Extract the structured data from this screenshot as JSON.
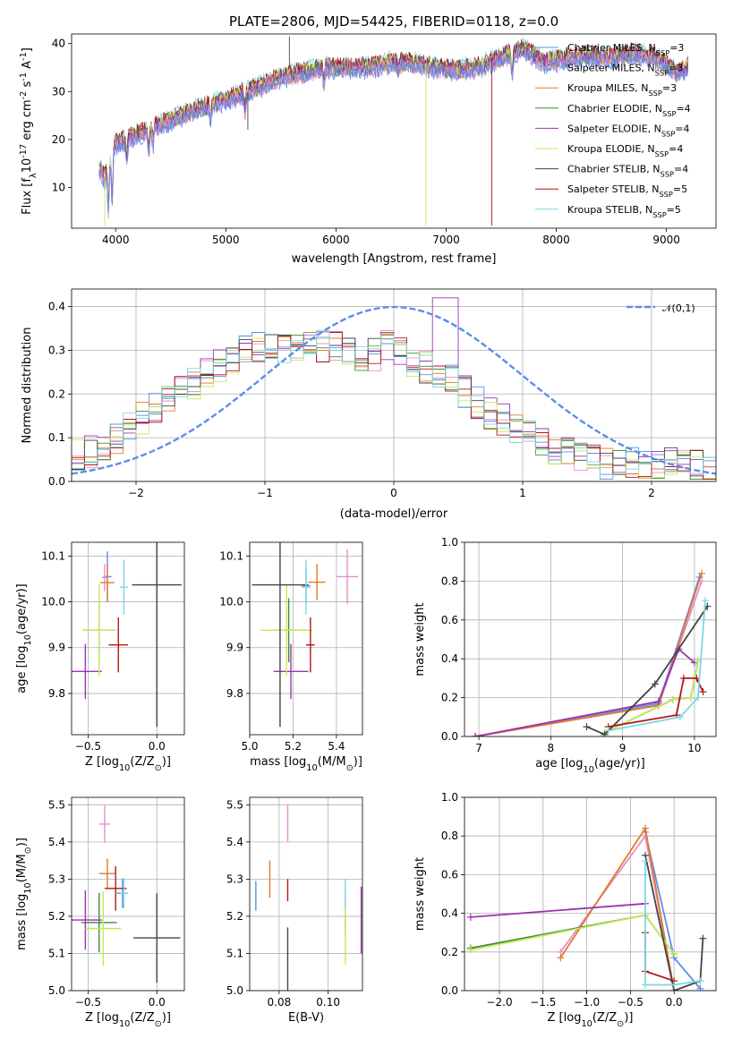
{
  "chart_data": [
    {
      "type": "line",
      "title": "PLATE=2806, MJD=54425, FIBERID=0118, z=0.0",
      "xlabel": "wavelength [Angstrom, rest frame]",
      "ylabel": "Flux [f$_λ$10$^{-17}$ erg cm$^{-2}$ s$^{-1}$ A$^{-1}$]",
      "xlim": [
        3600,
        9450
      ],
      "ylim": [
        1.5,
        42
      ],
      "xticks": [
        4000,
        5000,
        6000,
        7000,
        8000,
        9000
      ],
      "yticks": [
        10,
        20,
        30,
        40
      ],
      "grid": false,
      "legend_position": "top-right",
      "spectrum_envelope": {
        "x": [
          3850,
          3900,
          4000,
          4100,
          4200,
          4300,
          4500,
          4700,
          4900,
          5100,
          5300,
          5500,
          5700,
          5900,
          6100,
          6300,
          6500,
          6700,
          6900,
          7100,
          7300,
          7500,
          7700,
          7900,
          8100,
          8300,
          8500,
          8700,
          8900,
          9100,
          9200
        ],
        "y": [
          14,
          12,
          19,
          20,
          21,
          22,
          24,
          26,
          27.5,
          29,
          31,
          33,
          34,
          35,
          35,
          35,
          36,
          36,
          35,
          34.5,
          35,
          37,
          39,
          36,
          37,
          37.5,
          37,
          38,
          37,
          34,
          35
        ]
      },
      "series": [
        {
          "name": "Chabrier MILES, N$_{SSP}$=3"
        },
        {
          "name": "Salpeter MILES, N$_{SSP}$=3"
        },
        {
          "name": "Kroupa MILES, N$_{SSP}$=3"
        },
        {
          "name": "Chabrier ELODIE, N$_{SSP}$=4"
        },
        {
          "name": "Salpeter ELODIE, N$_{SSP}$=4"
        },
        {
          "name": "Kroupa ELODIE, N$_{SSP}$=4"
        },
        {
          "name": "Chabrier STELIB, N$_{SSP}$=4"
        },
        {
          "name": "Salpeter STELIB, N$_{SSP}$=5"
        },
        {
          "name": "Kroupa STELIB, N$_{SSP}$=5"
        }
      ]
    },
    {
      "type": "line",
      "xlabel": "(data-model)/error",
      "ylabel": "Normed distribution",
      "xlim": [
        -2.5,
        2.5
      ],
      "ylim": [
        0,
        0.44
      ],
      "xticks": [
        -2,
        -1,
        0,
        1,
        2
      ],
      "yticks": [
        0.0,
        0.1,
        0.2,
        0.3,
        0.4
      ],
      "grid": true,
      "legend_position": "top-right",
      "reference_curve": {
        "name": "$\\mathcal{N}(0,1)$",
        "mean": 0,
        "sigma": 1
      },
      "bin_width": 0.1,
      "bin_start": -2.5,
      "histogram_mean_shape": [
        0.06,
        0.06,
        0.065,
        0.07,
        0.075,
        0.08,
        0.09,
        0.1,
        0.11,
        0.13,
        0.14,
        0.15,
        0.16,
        0.17,
        0.18,
        0.19,
        0.2,
        0.21,
        0.22,
        0.23,
        0.24,
        0.25,
        0.26,
        0.27,
        0.28,
        0.29,
        0.3,
        0.3,
        0.31,
        0.31,
        0.3,
        0.32,
        0.31,
        0.3,
        0.32,
        0.31,
        0.33,
        0.33,
        0.32,
        0.3,
        0.31,
        0.3,
        0.3,
        0.29,
        0.3,
        0.28,
        0.28,
        0.3,
        0.32,
        0.31,
        0.3,
        0.29,
        0.28,
        0.27,
        0.26,
        0.26,
        0.25,
        0.25,
        0.24,
        0.22,
        0.21,
        0.2,
        0.19,
        0.17,
        0.16,
        0.15,
        0.14,
        0.14,
        0.12,
        0.11,
        0.11,
        0.1,
        0.09,
        0.09,
        0.08,
        0.07,
        0.07,
        0.06,
        0.06,
        0.05,
        0.05,
        0.05,
        0.04,
        0.04,
        0.04,
        0.05,
        0.04,
        0.05,
        0.04,
        0.04,
        0.04,
        0.03,
        0.05,
        0.04,
        0.03,
        0.04,
        0.03,
        0.04,
        0.03,
        0.03
      ]
    },
    {
      "type": "scatter",
      "xlabel": "Z [log$_{10}$($Z/Z_\\odot$)]",
      "ylabel": "age  [log$_{10}$($age/yr$)]",
      "xlim": [
        -0.62,
        0.2
      ],
      "ylim": [
        9.71,
        10.13
      ],
      "xticks": [
        -0.5,
        0.0
      ],
      "yticks": [
        9.8,
        9.9,
        10.0,
        10.1
      ],
      "grid": true,
      "points": [
        {
          "x": -0.36,
          "xerr": 0.03,
          "y": 10.055,
          "yerr": 0.055
        },
        {
          "x": -0.38,
          "xerr": 0.02,
          "y": 10.053,
          "yerr": 0.03
        },
        {
          "x": -0.36,
          "xerr": 0.05,
          "y": 10.042,
          "yerr": 0.04
        },
        {
          "x": -0.42,
          "xerr": 0.12,
          "y": 9.938,
          "yerr": 0.07
        },
        {
          "x": -0.52,
          "xerr": 0.12,
          "y": 9.848,
          "yerr": 0.06
        },
        {
          "x": -0.42,
          "xerr": 0.12,
          "y": 9.938,
          "yerr": 0.1
        },
        {
          "x": 0.0,
          "xerr": 0.18,
          "y": 10.037,
          "yerr": 0.31
        },
        {
          "x": -0.28,
          "xerr": 0.07,
          "y": 9.906,
          "yerr": 0.06
        },
        {
          "x": -0.24,
          "xerr": 0.03,
          "y": 10.032,
          "yerr": 0.06
        }
      ]
    },
    {
      "type": "scatter",
      "xlabel": "mass [log$_{10}$($M/M_\\odot$)]",
      "ylabel": "",
      "xlim": [
        5.0,
        5.52
      ],
      "ylim": [
        9.71,
        10.13
      ],
      "xticks": [
        5.0,
        5.2,
        5.4
      ],
      "yticks": [
        9.8,
        9.9,
        10.0,
        10.1
      ],
      "grid": true,
      "points": [
        {
          "x": 5.26,
          "xerr": 0.02,
          "y": 10.035,
          "yerr": 0.04
        },
        {
          "x": 5.45,
          "xerr": 0.05,
          "y": 10.055,
          "yerr": 0.06
        },
        {
          "x": 5.31,
          "xerr": 0.04,
          "y": 10.043,
          "yerr": 0.04
        },
        {
          "x": 5.18,
          "xerr": 0.08,
          "y": 9.938,
          "yerr": 0.07
        },
        {
          "x": 5.19,
          "xerr": 0.08,
          "y": 9.848,
          "yerr": 0.06
        },
        {
          "x": 5.17,
          "xerr": 0.12,
          "y": 9.938,
          "yerr": 0.1
        },
        {
          "x": 5.14,
          "xerr": 0.13,
          "y": 10.037,
          "yerr": 0.31
        },
        {
          "x": 5.28,
          "xerr": 0.02,
          "y": 9.906,
          "yerr": 0.06
        },
        {
          "x": 5.26,
          "xerr": 0.02,
          "y": 10.032,
          "yerr": 0.06
        }
      ]
    },
    {
      "type": "line",
      "xlabel": "age  [log$_{10}$($age/yr$)]",
      "ylabel": "mass weight",
      "xlim": [
        6.8,
        10.3
      ],
      "ylim": [
        0,
        1
      ],
      "xticks": [
        7,
        8,
        9,
        10
      ],
      "yticks": [
        0.0,
        0.2,
        0.4,
        0.6,
        0.8,
        1.0
      ],
      "grid": true,
      "series": [
        {
          "x": [
            6.95,
            9.5,
            10.07
          ],
          "y": [
            0.0,
            0.17,
            0.82
          ]
        },
        {
          "x": [
            6.95,
            9.5,
            10.1
          ],
          "y": [
            0.0,
            0.16,
            0.8
          ]
        },
        {
          "x": [
            6.95,
            9.5,
            10.1
          ],
          "y": [
            0.0,
            0.16,
            0.84
          ]
        },
        {
          "x": [
            8.75,
            9.7,
            9.95,
            10.05
          ],
          "y": [
            0.02,
            0.19,
            0.2,
            0.39
          ]
        },
        {
          "x": [
            6.95,
            9.5,
            9.78,
            10.0
          ],
          "y": [
            0.0,
            0.18,
            0.45,
            0.38
          ]
        },
        {
          "x": [
            8.75,
            9.7,
            9.95,
            10.05
          ],
          "y": [
            0.02,
            0.19,
            0.2,
            0.39
          ]
        },
        {
          "x": [
            8.5,
            8.75,
            9.45,
            10.18
          ],
          "y": [
            0.05,
            0.01,
            0.27,
            0.67
          ]
        },
        {
          "x": [
            8.8,
            9.75,
            9.85,
            10.03,
            10.12
          ],
          "y": [
            0.05,
            0.11,
            0.3,
            0.3,
            0.23
          ]
        },
        {
          "x": [
            8.8,
            9.8,
            10.05,
            10.15
          ],
          "y": [
            0.03,
            0.1,
            0.2,
            0.7
          ]
        }
      ]
    },
    {
      "type": "scatter",
      "xlabel": "Z [log$_{10}$($Z/Z_\\odot$)]",
      "ylabel": "mass [log$_{10}$($M/M_\\odot$)]",
      "xlim": [
        -0.62,
        0.2
      ],
      "ylim": [
        5.0,
        5.52
      ],
      "xticks": [
        -0.5,
        0.0
      ],
      "yticks": [
        5.0,
        5.1,
        5.2,
        5.3,
        5.4,
        5.5
      ],
      "grid": true,
      "points": [
        {
          "x": -0.25,
          "xerr": 0.04,
          "y": 5.262,
          "yerr": 0.04
        },
        {
          "x": -0.38,
          "xerr": 0.04,
          "y": 5.448,
          "yerr": 0.05
        },
        {
          "x": -0.36,
          "xerr": 0.06,
          "y": 5.315,
          "yerr": 0.04
        },
        {
          "x": -0.42,
          "xerr": 0.13,
          "y": 5.183,
          "yerr": 0.08
        },
        {
          "x": -0.52,
          "xerr": 0.12,
          "y": 5.19,
          "yerr": 0.08
        },
        {
          "x": -0.39,
          "xerr": 0.13,
          "y": 5.167,
          "yerr": 0.1
        },
        {
          "x": 0.0,
          "xerr": 0.17,
          "y": 5.142,
          "yerr": 0.12
        },
        {
          "x": -0.3,
          "xerr": 0.08,
          "y": 5.275,
          "yerr": 0.06
        },
        {
          "x": -0.24,
          "xerr": 0.03,
          "y": 5.262,
          "yerr": 0.04
        }
      ]
    },
    {
      "type": "scatter",
      "xlabel": "E(B-V)",
      "ylabel": "",
      "xlim": [
        0.068,
        0.114
      ],
      "ylim": [
        5.0,
        5.52
      ],
      "xticks": [
        0.08,
        0.1
      ],
      "yticks": [
        5.0,
        5.1,
        5.2,
        5.3,
        5.4,
        5.5
      ],
      "grid": true,
      "points": [
        {
          "x": 0.0705,
          "y": 5.255,
          "yerr": 0.04
        },
        {
          "x": 0.0835,
          "y": 5.45,
          "yerr": 0.05
        },
        {
          "x": 0.0762,
          "y": 5.3,
          "yerr": 0.05
        },
        {
          "x": 0.107,
          "y": 5.21,
          "yerr": 0.06
        },
        {
          "x": 0.1135,
          "y": 5.19,
          "yerr": 0.09
        },
        {
          "x": 0.107,
          "y": 5.17,
          "yerr": 0.1
        },
        {
          "x": 0.0835,
          "y": 5.05,
          "yerr": 0.12
        },
        {
          "x": 0.0835,
          "y": 5.27,
          "yerr": 0.03
        },
        {
          "x": 0.107,
          "y": 5.26,
          "yerr": 0.04
        }
      ]
    },
    {
      "type": "line",
      "xlabel": "Z [log$_{10}$($Z/Z_\\odot$)]",
      "ylabel": "mass weight",
      "xlim": [
        -2.4,
        0.48
      ],
      "ylim": [
        0,
        1
      ],
      "xticks": [
        -2.0,
        -1.5,
        -1.0,
        -0.5,
        0.0
      ],
      "yticks": [
        0.0,
        0.2,
        0.4,
        0.6,
        0.8,
        1.0
      ],
      "grid": true,
      "series": [
        {
          "x": [
            -0.33,
            0.0,
            0.3
          ],
          "y": [
            0.82,
            0.17,
            0.01
          ]
        },
        {
          "x": [
            -1.3,
            -0.33,
            0.0
          ],
          "y": [
            0.2,
            0.8,
            0.0
          ]
        },
        {
          "x": [
            -1.3,
            -0.33,
            0.0
          ],
          "y": [
            0.17,
            0.84,
            0.0
          ]
        },
        {
          "x": [
            -2.33,
            -0.33,
            0.0
          ],
          "y": [
            0.22,
            0.39,
            0.19
          ]
        },
        {
          "x": [
            -2.33,
            -0.33
          ],
          "y": [
            0.38,
            0.45
          ]
        },
        {
          "x": [
            -2.33,
            -0.33,
            0.0
          ],
          "y": [
            0.21,
            0.39,
            0.19
          ]
        },
        {
          "x": [
            -0.33,
            0.0,
            0.3,
            0.33
          ],
          "y": [
            0.7,
            0.0,
            0.05,
            0.27
          ]
        },
        {
          "x": [
            -0.33,
            -0.33,
            0.0
          ],
          "y": [
            0.3,
            0.1,
            0.05
          ]
        },
        {
          "x": [
            -0.33,
            -0.33,
            0.0,
            0.3
          ],
          "y": [
            0.67,
            0.03,
            0.03,
            0.05
          ]
        }
      ]
    }
  ],
  "colors": [
    "#5b8def",
    "#e58fd0",
    "#e07b28",
    "#3a8c3a",
    "#9b34b0",
    "#c8e85a",
    "#444444",
    "#b01818",
    "#7dd8e0"
  ],
  "normal_color": "#5b8def",
  "normal_label": "𝒩(0,1)"
}
